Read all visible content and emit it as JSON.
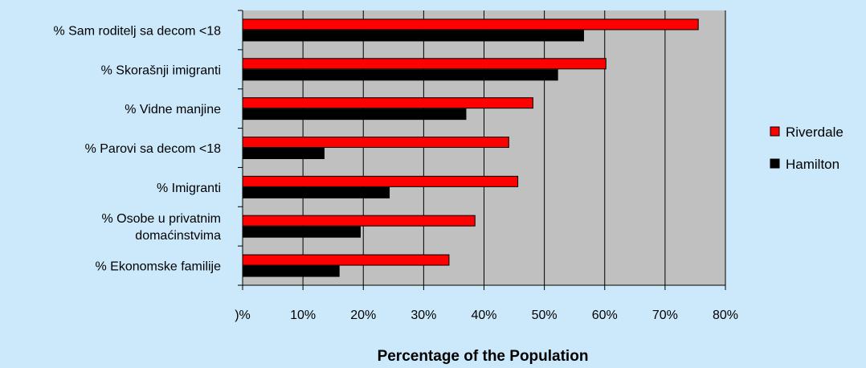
{
  "chart_data": {
    "type": "bar",
    "orientation": "horizontal",
    "categories": [
      [
        "% Sam roditelj sa decom <18"
      ],
      [
        "% Skorašnji imigranti"
      ],
      [
        "% Vidne manjine"
      ],
      [
        "% Parovi sa decom <18"
      ],
      [
        "% Imigranti"
      ],
      [
        "% Osobe u privatnim",
        "domaćinstvima"
      ],
      [
        "% Ekonomske familije"
      ]
    ],
    "series": [
      {
        "name": "Riverdale",
        "color": "#ff0000",
        "values": [
          75.5,
          60.2,
          48.1,
          44.1,
          45.6,
          38.5,
          34.2
        ]
      },
      {
        "name": "Hamilton",
        "color": "#000000",
        "values": [
          56.5,
          52.2,
          37.0,
          13.5,
          24.3,
          19.5,
          16.0
        ]
      }
    ],
    "xlabel": "Percentage of the Population",
    "xlim": [
      0,
      80
    ],
    "x_ticks": [
      0,
      10,
      20,
      30,
      40,
      50,
      60,
      70,
      80
    ],
    "x_tick_labels": [
      ")%",
      "10%",
      "20%",
      "30%",
      "40%",
      "50%",
      "60%",
      "70%",
      "80%"
    ],
    "grid": true,
    "plot_background": "#c0c0c0",
    "legend_position": "right"
  }
}
